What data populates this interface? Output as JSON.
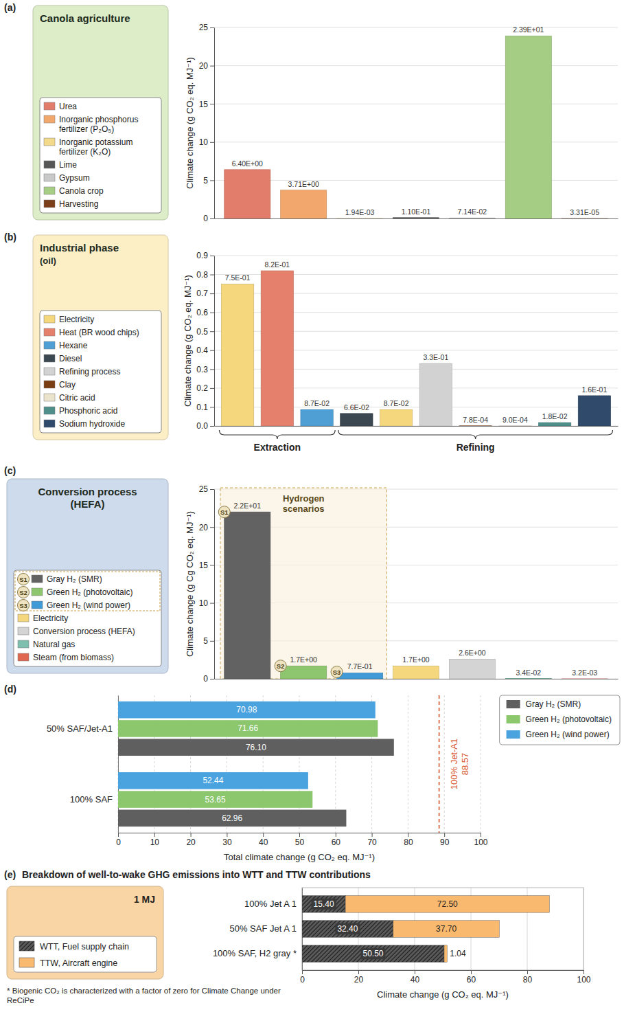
{
  "chart_data": [
    {
      "type": "bar",
      "panel_label": "(a)",
      "title": "Canola agriculture",
      "ylabel": "Climate change (g CO₂ eq. MJ⁻¹)",
      "categories": [
        "Urea",
        "Inorganic phosphorus fertilizer (P₂O₅)",
        "Inorganic potassium fertilizer (K₂O)",
        "Lime",
        "Gypsum",
        "Canola crop",
        "Harvesting"
      ],
      "values": [
        6.4,
        3.71,
        0.00194,
        0.11,
        0.0714,
        23.9,
        3.31e-05
      ],
      "value_labels": [
        "6.40E+00",
        "3.71E+00",
        "1.94E-03",
        "1.10E-01",
        "7.14E-02",
        "2.39E+01",
        "3.31E-05"
      ],
      "colors": [
        "#e27d6c",
        "#f2a86c",
        "#f3d98c",
        "#575757",
        "#c9c9c9",
        "#a6cd84",
        "#7a3e18"
      ],
      "ylim": [
        0,
        25
      ],
      "yticks": [
        0,
        5,
        10,
        15,
        20,
        25
      ],
      "grid": true,
      "data_labels": true,
      "tick_labels": "y",
      "legend": "left"
    },
    {
      "type": "bar",
      "panel_label": "(b)",
      "title": "Industrial phase",
      "subtitle": "(oil)",
      "ylabel": "Climate change (g CO₂ eq. MJ⁻¹)",
      "categories": [
        "Electricity",
        "Heat (BR wood chips)",
        "Hexane",
        "Diesel",
        "Electricity",
        "Refining process",
        "Clay",
        "Citric acid",
        "Phosphoric acid",
        "Sodium hydroxide"
      ],
      "values": [
        0.75,
        0.82,
        0.087,
        0.066,
        0.087,
        0.33,
        0.00078,
        0.0009,
        0.018,
        0.16
      ],
      "value_labels": [
        "7.5E-01",
        "8.2E-01",
        "8.7E-02",
        "6.6E-02",
        "8.7E-02",
        "3.3E-01",
        "7.8E-04",
        "9.0E-04",
        "1.8E-02",
        "1.6E-01"
      ],
      "colors": [
        "#f5d77e",
        "#e5806d",
        "#4f9fd5",
        "#3b4852",
        "#f5d77e",
        "#d2d2d2",
        "#7a3e12",
        "#ece3cc",
        "#4e8f8c",
        "#2f4a6b"
      ],
      "category_groups": [
        "Extraction",
        "Extraction",
        "Extraction",
        "Refining",
        "Refining",
        "Refining",
        "Refining",
        "Refining",
        "Refining",
        "Refining"
      ],
      "ylim": [
        0,
        0.9
      ],
      "yticks": [
        {
          "value": 0,
          "label": "0.0"
        },
        0.1,
        0.2,
        0.3,
        0.4,
        0.5,
        0.6,
        0.7,
        0.8,
        0.9
      ],
      "grid": true,
      "data_labels": true,
      "tick_labels": "y",
      "legend": "left"
    },
    {
      "type": "bar",
      "panel_label": "(c)",
      "title": "Conversion process (HEFA)",
      "ylabel": "Climate change (g Cg CO₂ eq. MJ⁻¹)",
      "categories": [
        "Gray H₂ (SMR)",
        "Green H₂ (photovoltaic)",
        "Green H₂ (wind power)",
        "Electricity",
        "Conversion process (HEFA)",
        "Natural gas",
        "Steam (from biomass)"
      ],
      "values": [
        22,
        1.7,
        0.77,
        1.7,
        2.6,
        0.034,
        0.0032
      ],
      "value_labels": [
        "2.2E+01",
        "1.7E+00",
        "7.7E-01",
        "1.7E+00",
        "2.6E+00",
        "3.4E-02",
        "3.2E-03"
      ],
      "colors": [
        "#626262",
        "#8dc66e",
        "#3f9ad6",
        "#f5d77e",
        "#d4d4d4",
        "#7fbfad",
        "#e0664f"
      ],
      "badges": [
        "S1",
        "S2",
        "S3",
        null,
        null,
        null,
        null
      ],
      "boxed_groups": [
        "Hydrogen scenarios",
        "Hydrogen scenarios",
        "Hydrogen scenarios",
        null,
        null,
        null,
        null
      ],
      "ylim": [
        0,
        25
      ],
      "yticks": [
        0,
        5,
        10,
        15,
        20,
        25
      ],
      "grid": true,
      "data_labels": true,
      "tick_labels": "y",
      "legend": "left"
    },
    {
      "type": "bar",
      "orientation": "horizontal",
      "panel_label": "(d)",
      "xlabel": "Total climate change (g CO₂ eq. MJ⁻¹)",
      "categories": [
        "50% SAF/Jet-A1",
        "100% SAF"
      ],
      "series": [
        {
          "name": "Gray H₂ (SMR)",
          "color": "#5f5f5f",
          "values": [
            76.1,
            62.96
          ],
          "value_labels": [
            "76.10",
            "62.96"
          ]
        },
        {
          "name": "Green H₂ (photovoltaic)",
          "color": "#8cc66d",
          "values": [
            71.66,
            53.65
          ],
          "value_labels": [
            "71.66",
            "53.65"
          ]
        },
        {
          "name": "Green H₂ (wind power)",
          "color": "#4aa3df",
          "values": [
            70.98,
            52.44
          ],
          "value_labels": [
            "70.98",
            "52.44"
          ]
        }
      ],
      "reference_lines": [
        {
          "label": "100% Jet-A1",
          "value": 88.57,
          "color": "#d9532c"
        }
      ],
      "xlim": [
        0,
        100
      ],
      "xticks": [
        0,
        10,
        20,
        30,
        40,
        50,
        60,
        70,
        80,
        90,
        100
      ],
      "grid": true,
      "data_labels": true,
      "legend": "right"
    },
    {
      "type": "bar",
      "orientation": "horizontal",
      "stacked": true,
      "panel_label": "(e)",
      "title": "Breakdown of well-to-wake GHG emissions into WTT and TTW contributions",
      "xlabel": "Climate change (g CO₂ eq. MJ⁻¹)",
      "annotation": "1 MJ",
      "footnote": "* Biogenic CO₂ is characterized with a factor of zero for Climate Change under ReCiPe",
      "categories": [
        "100% Jet A 1",
        "50% SAF Jet A 1",
        "100% SAF, H2 gray *"
      ],
      "series": [
        {
          "name": "WTT, Fuel supply chain",
          "color": "#5a5a5a",
          "values": [
            15.4,
            32.4,
            50.5
          ],
          "value_labels": [
            "15.40",
            "32.40",
            "50.50"
          ]
        },
        {
          "name": "TTW, Aircraft engine",
          "color": "#f9b96e",
          "values": [
            72.5,
            37.7,
            1.04
          ],
          "value_labels": [
            "72.50",
            "37.70",
            "1.04"
          ]
        }
      ],
      "xlim": [
        0,
        100
      ],
      "xticks": [
        0,
        20,
        40,
        60,
        80,
        100
      ],
      "grid": true,
      "data_labels": true,
      "legend": "left"
    }
  ]
}
